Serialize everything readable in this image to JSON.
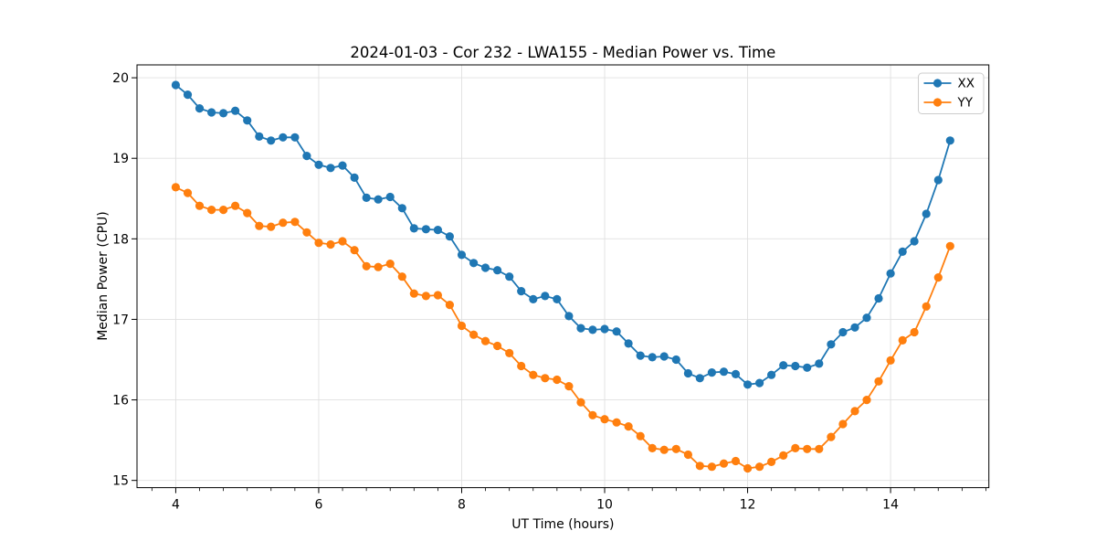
{
  "chart_data": {
    "type": "line",
    "title": "2024-01-03 - Cor 232 - LWA155 - Median Power vs. Time",
    "xlabel": "UT Time (hours)",
    "ylabel": "Median Power (CPU)",
    "xlim": [
      3.458,
      15.375
    ],
    "ylim": [
      14.91,
      20.16
    ],
    "xticks": [
      4,
      6,
      8,
      10,
      12,
      14
    ],
    "x_minor_tick_step": 0.3333,
    "yticks": [
      15,
      16,
      17,
      18,
      19,
      20
    ],
    "grid": true,
    "grid_color": "#e0e0e0",
    "spine_color": "#000000",
    "legend": {
      "position": "upper right"
    },
    "x": [
      4,
      4.167,
      4.333,
      4.5,
      4.667,
      4.833,
      5,
      5.167,
      5.333,
      5.5,
      5.667,
      5.833,
      6,
      6.167,
      6.333,
      6.5,
      6.667,
      6.833,
      7,
      7.167,
      7.333,
      7.5,
      7.667,
      7.833,
      8,
      8.167,
      8.333,
      8.5,
      8.667,
      8.833,
      9,
      9.167,
      9.333,
      9.5,
      9.667,
      9.833,
      10,
      10.167,
      10.333,
      10.5,
      10.667,
      10.833,
      11,
      11.167,
      11.333,
      11.5,
      11.667,
      11.833,
      12,
      12.167,
      12.333,
      12.5,
      12.667,
      12.833,
      13,
      13.167,
      13.333,
      13.5,
      13.667,
      13.833,
      14,
      14.167,
      14.333,
      14.5,
      14.667,
      14.833
    ],
    "series": [
      {
        "name": "XX",
        "color": "#1f77b4",
        "marker": "circle",
        "values": [
          19.91,
          19.79,
          19.62,
          19.57,
          19.56,
          19.59,
          19.47,
          19.27,
          19.22,
          19.26,
          19.26,
          19.03,
          18.92,
          18.88,
          18.91,
          18.76,
          18.51,
          18.49,
          18.52,
          18.38,
          18.13,
          18.12,
          18.11,
          18.03,
          17.8,
          17.7,
          17.64,
          17.61,
          17.53,
          17.35,
          17.25,
          17.29,
          17.25,
          17.04,
          16.89,
          16.87,
          16.88,
          16.85,
          16.7,
          16.55,
          16.53,
          16.54,
          16.5,
          16.33,
          16.27,
          16.34,
          16.35,
          16.32,
          16.19,
          16.21,
          16.31,
          16.43,
          16.42,
          16.4,
          16.45,
          16.69,
          16.84,
          16.9,
          17.02,
          17.26,
          17.57,
          17.84,
          17.97,
          18.31,
          18.73,
          19.22
        ]
      },
      {
        "name": "YY",
        "color": "#ff7f0e",
        "marker": "circle",
        "values": [
          18.64,
          18.57,
          18.41,
          18.36,
          18.36,
          18.41,
          18.32,
          18.16,
          18.15,
          18.2,
          18.21,
          18.08,
          17.95,
          17.93,
          17.97,
          17.86,
          17.66,
          17.65,
          17.69,
          17.53,
          17.32,
          17.29,
          17.3,
          17.18,
          16.92,
          16.81,
          16.73,
          16.67,
          16.58,
          16.42,
          16.31,
          16.27,
          16.25,
          16.17,
          15.97,
          15.81,
          15.76,
          15.72,
          15.67,
          15.55,
          15.4,
          15.38,
          15.39,
          15.32,
          15.18,
          15.17,
          15.21,
          15.24,
          15.15,
          15.17,
          15.23,
          15.31,
          15.4,
          15.39,
          15.39,
          15.54,
          15.7,
          15.86,
          16.0,
          16.23,
          16.49,
          16.74,
          16.84,
          17.16,
          17.52,
          17.91
        ]
      }
    ]
  }
}
